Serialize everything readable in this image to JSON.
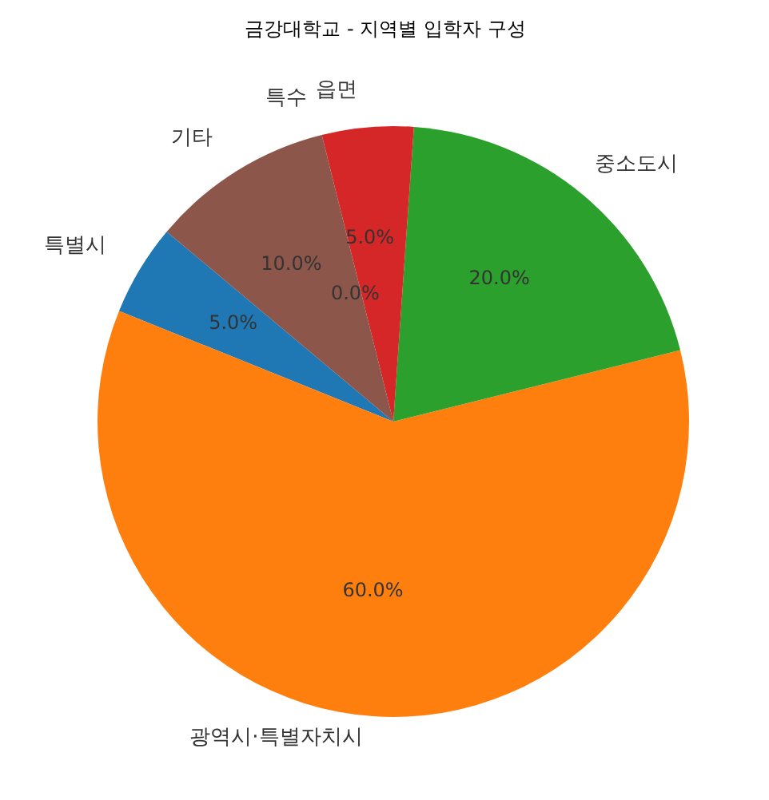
{
  "chart_data": {
    "type": "pie",
    "title": "금강대학교 - 지역별 입학자 구성",
    "categories": [
      "특별시",
      "광역시·특별자치시",
      "중소도시",
      "읍면",
      "특수",
      "기타"
    ],
    "values": [
      5,
      60,
      20,
      5,
      0,
      10
    ],
    "value_labels": [
      "5.0%",
      "60.0%",
      "20.0%",
      "5.0%",
      "0.0%",
      "10.0%"
    ],
    "colors": [
      "#1f77b4",
      "#ff7f0e",
      "#2ca02c",
      "#d62728",
      "#9467bd",
      "#8c564b"
    ]
  }
}
